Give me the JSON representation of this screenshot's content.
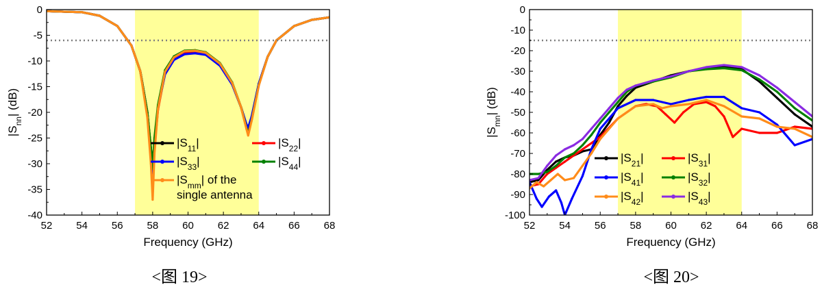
{
  "charts": [
    {
      "caption": "<图 19>",
      "chart_data": {
        "type": "line",
        "xlabel": "Frequency (GHz)",
        "ylabel_main": "|S",
        "ylabel_sub": "nn",
        "ylabel_tail": "| (dB)",
        "xlim": [
          52,
          68
        ],
        "ylim": [
          -40,
          0
        ],
        "xticks": [
          52,
          54,
          56,
          58,
          60,
          62,
          64,
          66,
          68
        ],
        "yticks": [
          0,
          -5,
          -10,
          -15,
          -20,
          -25,
          -30,
          -35,
          -40
        ],
        "band": [
          57,
          64
        ],
        "band_color": "#ffff99",
        "threshold": -6,
        "legend_position": "bottom-right",
        "series": [
          {
            "name": "|S11|",
            "label_main": "|S",
            "label_sub": "11",
            "label_tail": "|",
            "color": "#000000",
            "x": [
              52,
              54,
              55,
              56,
              56.8,
              57.3,
              57.7,
              57.9,
              58.0,
              58.1,
              58.3,
              58.7,
              59.2,
              59.8,
              60.4,
              61.0,
              61.8,
              62.5,
              63.0,
              63.3,
              63.4,
              63.6,
              64.0,
              64.5,
              65,
              66,
              67,
              68
            ],
            "y": [
              -0.3,
              -0.5,
              -1.2,
              -3.2,
              -7,
              -12,
              -20,
              -27,
              -30,
              -26,
              -19,
              -12.5,
              -9.7,
              -8.6,
              -8.4,
              -8.7,
              -10.8,
              -14.5,
              -19,
              -22.5,
              -23.5,
              -21,
              -14.5,
              -9.2,
              -6,
              -3.2,
              -2,
              -1.5
            ]
          },
          {
            "name": "|S22|",
            "label_main": "|S",
            "label_sub": "22",
            "label_tail": "|",
            "color": "#ff0000",
            "x": [
              52,
              54,
              55,
              56,
              56.8,
              57.3,
              57.7,
              57.9,
              58.0,
              58.1,
              58.3,
              58.7,
              59.2,
              59.8,
              60.4,
              61.0,
              61.8,
              62.5,
              63.0,
              63.3,
              63.4,
              63.6,
              64.0,
              64.5,
              65,
              66,
              67,
              68
            ],
            "y": [
              -0.3,
              -0.5,
              -1.2,
              -3.2,
              -7,
              -12,
              -20,
              -28,
              -35,
              -27,
              -19.5,
              -12.3,
              -9.5,
              -8.3,
              -8.1,
              -8.5,
              -10.6,
              -14.4,
              -19,
              -23,
              -24,
              -21.3,
              -14.6,
              -9.2,
              -6,
              -3.2,
              -2,
              -1.5
            ]
          },
          {
            "name": "|S33|",
            "label_main": "|S",
            "label_sub": "33",
            "label_tail": "|",
            "color": "#0000ff",
            "x": [
              52,
              54,
              55,
              56,
              56.8,
              57.3,
              57.7,
              57.9,
              58.0,
              58.1,
              58.3,
              58.7,
              59.2,
              59.8,
              60.4,
              61.0,
              61.8,
              62.5,
              63.0,
              63.3,
              63.4,
              63.6,
              64.0,
              64.5,
              65,
              66,
              67,
              68
            ],
            "y": [
              -0.3,
              -0.5,
              -1.2,
              -3.2,
              -7,
              -12,
              -20,
              -28,
              -32,
              -26,
              -19,
              -12.6,
              -9.8,
              -8.7,
              -8.5,
              -8.8,
              -10.9,
              -14.6,
              -19,
              -22.3,
              -23,
              -20.8,
              -14.4,
              -9.2,
              -6,
              -3.2,
              -2,
              -1.5
            ]
          },
          {
            "name": "|S44|",
            "label_main": "|S",
            "label_sub": "44",
            "label_tail": "|",
            "color": "#008000",
            "x": [
              52,
              54,
              55,
              56,
              56.8,
              57.3,
              57.7,
              57.9,
              58.0,
              58.1,
              58.3,
              58.7,
              59.2,
              59.8,
              60.4,
              61.0,
              61.8,
              62.5,
              63.0,
              63.3,
              63.4,
              63.6,
              64.0,
              64.5,
              65,
              66,
              67,
              68
            ],
            "y": [
              -0.3,
              -0.5,
              -1.2,
              -3.2,
              -7,
              -12,
              -20,
              -27,
              -31,
              -25,
              -18.6,
              -11.8,
              -9.1,
              -8.0,
              -7.9,
              -8.3,
              -10.4,
              -14.2,
              -19,
              -23,
              -24.2,
              -21.5,
              -14.7,
              -9.2,
              -6,
              -3.2,
              -2,
              -1.5
            ]
          },
          {
            "name": "|Smm| of the single antenna",
            "label_main": "|S",
            "label_sub": "mm",
            "label_tail": "| of the",
            "label_line2": "single antenna",
            "color": "#ff8c1a",
            "x": [
              52,
              54,
              55,
              56,
              56.8,
              57.3,
              57.7,
              57.9,
              58.0,
              58.1,
              58.3,
              58.7,
              59.2,
              59.8,
              60.4,
              61.0,
              61.8,
              62.5,
              63.0,
              63.3,
              63.4,
              63.6,
              64.0,
              64.5,
              65,
              66,
              67,
              68
            ],
            "y": [
              -0.3,
              -0.5,
              -1.2,
              -3.2,
              -7,
              -12,
              -21,
              -30,
              -37,
              -28,
              -19.3,
              -12.1,
              -9.3,
              -8.1,
              -8.0,
              -8.4,
              -10.5,
              -14.3,
              -19,
              -23.2,
              -24.5,
              -21.6,
              -14.8,
              -9.2,
              -6,
              -3.2,
              -2,
              -1.5
            ]
          }
        ]
      }
    },
    {
      "caption": "<图 20>",
      "chart_data": {
        "type": "line",
        "xlabel": "Frequency (GHz)",
        "ylabel_main": "|S",
        "ylabel_sub": "mn",
        "ylabel_tail": "| (dB)",
        "xlim": [
          52,
          68
        ],
        "ylim": [
          -100,
          0
        ],
        "xticks": [
          52,
          54,
          56,
          58,
          60,
          62,
          64,
          66,
          68
        ],
        "yticks": [
          0,
          -10,
          -20,
          -30,
          -40,
          -50,
          -60,
          -70,
          -80,
          -90,
          -100
        ],
        "band": [
          57,
          64
        ],
        "band_color": "#ffff99",
        "threshold": -15,
        "legend_position": "bottom-center",
        "series": [
          {
            "name": "|S21|",
            "label_main": "|S",
            "label_sub": "21",
            "label_tail": "|",
            "color": "#000000",
            "x": [
              52,
              52.5,
              53,
              53.5,
              54,
              54.5,
              55,
              55.5,
              56,
              56.5,
              57,
              57.5,
              58,
              59,
              60,
              61,
              62,
              63,
              64,
              65,
              66,
              67,
              68
            ],
            "y": [
              -84,
              -83,
              -78,
              -74,
              -72,
              -71,
              -69,
              -68,
              -61,
              -55,
              -47,
              -42,
              -38,
              -35,
              -32,
              -30,
              -28.5,
              -28,
              -29,
              -35,
              -43,
              -51,
              -57
            ]
          },
          {
            "name": "|S31|",
            "label_main": "|S",
            "label_sub": "31",
            "label_tail": "|",
            "color": "#ff0000",
            "x": [
              52,
              52.5,
              53,
              53.5,
              54,
              55,
              56,
              57,
              58,
              58.6,
              59.2,
              59.7,
              60.2,
              60.7,
              61.3,
              62,
              62.5,
              63,
              63.5,
              64,
              65,
              66,
              67,
              68
            ],
            "y": [
              -86,
              -85,
              -80,
              -77,
              -74,
              -68,
              -62,
              -53,
              -47,
              -46,
              -47,
              -51,
              -55,
              -50,
              -46,
              -45,
              -47,
              -52,
              -62,
              -58,
              -60,
              -60,
              -57,
              -58
            ]
          },
          {
            "name": "|S41|",
            "label_main": "|S",
            "label_sub": "41",
            "label_tail": "|",
            "color": "#0000ff",
            "x": [
              52,
              52.4,
              52.7,
              53.1,
              53.5,
              53.8,
              54.0,
              54.4,
              55,
              55.5,
              56,
              57,
              58,
              59,
              60,
              61,
              62,
              63,
              64,
              65,
              66,
              67,
              68
            ],
            "y": [
              -84,
              -92,
              -96,
              -91,
              -88,
              -94,
              -100,
              -92,
              -81,
              -68,
              -58,
              -48,
              -44,
              -44,
              -46,
              -44,
              -42.5,
              -42.5,
              -48,
              -50,
              -56,
              -66,
              -63
            ]
          },
          {
            "name": "|S32|",
            "label_main": "|S",
            "label_sub": "32",
            "label_tail": "|",
            "color": "#008000",
            "x": [
              52,
              52.5,
              53,
              53.5,
              54,
              54.5,
              55,
              55.5,
              56,
              56.5,
              57,
              57.5,
              58,
              59,
              60,
              61,
              62,
              63,
              64,
              65,
              66,
              67,
              68
            ],
            "y": [
              -80,
              -80,
              -79,
              -76,
              -72,
              -70,
              -66,
              -61,
              -55,
              -50,
              -45,
              -40,
              -37,
              -35,
              -33,
              -30,
              -29,
              -28.5,
              -29.5,
              -34,
              -40,
              -48,
              -54
            ]
          },
          {
            "name": "|S42|",
            "label_main": "|S",
            "label_sub": "42",
            "label_tail": "|",
            "color": "#ff8c1a",
            "x": [
              52,
              52.4,
              52.8,
              53.2,
              53.6,
              54,
              54.5,
              55,
              55.5,
              56,
              57,
              58,
              59,
              59.5,
              60,
              61,
              62,
              63,
              64,
              65,
              66,
              67,
              68
            ],
            "y": [
              -87,
              -84,
              -86,
              -83,
              -80,
              -83,
              -82,
              -76,
              -70,
              -63,
              -53,
              -47,
              -46,
              -48,
              -47,
              -46,
              -44,
              -47,
              -52,
              -53,
              -57,
              -58,
              -62
            ]
          },
          {
            "name": "|S43|",
            "label_main": "|S",
            "label_sub": "43",
            "label_tail": "|",
            "color": "#8a2be2",
            "x": [
              52,
              52.5,
              53,
              53.5,
              54,
              54.5,
              55,
              55.5,
              56,
              56.5,
              57,
              57.5,
              58,
              59,
              60,
              61,
              62,
              63,
              64,
              65,
              66,
              67,
              68
            ],
            "y": [
              -83,
              -82,
              -76,
              -71,
              -68,
              -66,
              -63,
              -58,
              -53,
              -48,
              -43,
              -39,
              -37,
              -34.5,
              -32.5,
              -30,
              -28,
              -27,
              -28,
              -32,
              -38,
              -45,
              -52
            ]
          }
        ]
      }
    }
  ]
}
